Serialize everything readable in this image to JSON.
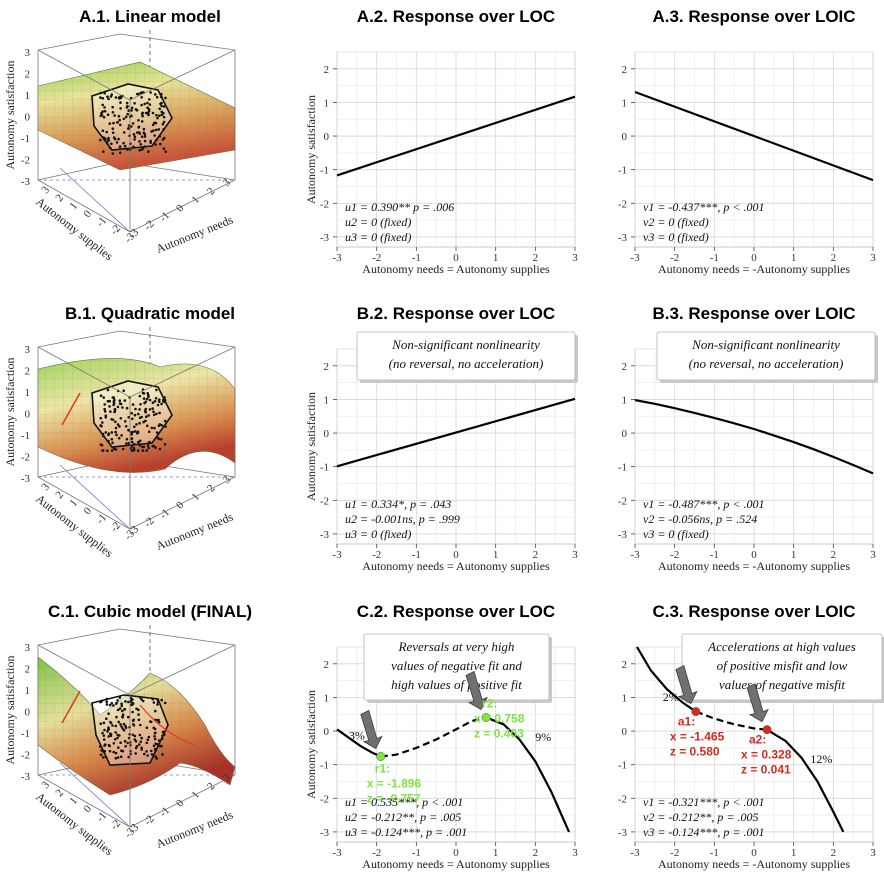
{
  "figure": {
    "rows": [
      {
        "surface": {
          "title": "A.1. Linear model",
          "zlabel": "Autonomy satisfaction",
          "xlabel": "Autonomy supplies",
          "ylabel": "Autonomy needs",
          "zticks": [
            "3",
            "2",
            "1",
            "0",
            "-1",
            "-2",
            "-3"
          ],
          "xticks": [
            "3",
            "2",
            "1",
            "0",
            "-1",
            "-2",
            "-3"
          ],
          "yticks": [
            "-3",
            "-2",
            "-1",
            "0",
            "1",
            "2",
            "3"
          ],
          "shape": "plane"
        }
      },
      {
        "surface": {
          "title": "B.1. Quadratic model",
          "zlabel": "Autonomy satisfaction",
          "xlabel": "Autonomy supplies",
          "ylabel": "Autonomy needs",
          "zticks": [
            "3",
            "2",
            "1",
            "0",
            "-1",
            "-2",
            "-3"
          ],
          "xticks": [
            "3",
            "2",
            "1",
            "0",
            "-1",
            "-2",
            "-3"
          ],
          "yticks": [
            "-3",
            "-2",
            "-1",
            "0",
            "1",
            "2",
            "3"
          ],
          "shape": "saddle"
        }
      },
      {
        "surface": {
          "title": "C.1. Cubic model (FINAL)",
          "zlabel": "Autonomy satisfaction",
          "xlabel": "Autonomy supplies",
          "ylabel": "Autonomy needs",
          "zticks": [
            "3",
            "2",
            "1",
            "0",
            "-1",
            "-2",
            "-3"
          ],
          "xticks": [
            "3",
            "2",
            "1",
            "0",
            "-1",
            "-2",
            "-3"
          ],
          "yticks": [
            "-3",
            "-2",
            "-1",
            "0",
            "1",
            "2",
            "3"
          ],
          "shape": "wave"
        }
      }
    ]
  },
  "chart_data": [
    {
      "type": "line",
      "title": "A.2. Response over LOC",
      "xlabel": "Autonomy needs = Autonomy supplies",
      "ylabel": "Autonomy satisfaction",
      "xlim": [
        -3,
        3
      ],
      "ylim": [
        -3.3,
        2.5
      ],
      "xticks": [
        -3,
        -2,
        -1,
        0,
        1,
        2,
        3
      ],
      "yticks": [
        -3,
        -2,
        -1,
        0,
        1,
        2
      ],
      "grid": true,
      "series": [
        {
          "x": [
            -3,
            3
          ],
          "y": [
            -1.17,
            1.17
          ],
          "color": "#000000"
        }
      ],
      "annotations": [
        "u1 = 0.390** p = .006",
        "u2 = 0 (fixed)",
        "u3 = 0 (fixed)"
      ]
    },
    {
      "type": "line",
      "title": "A.3. Response over LOIC",
      "xlabel": "Autonomy needs = -Autonomy supplies",
      "ylabel": "",
      "xlim": [
        -3,
        3
      ],
      "ylim": [
        -3.3,
        2.5
      ],
      "xticks": [
        -3,
        -2,
        -1,
        0,
        1,
        2,
        3
      ],
      "yticks": [
        -3,
        -2,
        -1,
        0,
        1,
        2
      ],
      "grid": true,
      "series": [
        {
          "x": [
            -3,
            3
          ],
          "y": [
            1.31,
            -1.31
          ],
          "color": "#000000"
        }
      ],
      "annotations": [
        "v1 = -0.437***, p < .001",
        "v2 = 0 (fixed)",
        "v3 = 0 (fixed)"
      ]
    },
    {
      "type": "line",
      "title": "B.2. Response over LOC",
      "xlabel": "Autonomy needs = Autonomy supplies",
      "ylabel": "Autonomy satisfaction",
      "xlim": [
        -3,
        3
      ],
      "ylim": [
        -3.3,
        2.5
      ],
      "xticks": [
        -3,
        -2,
        -1,
        0,
        1,
        2,
        3
      ],
      "yticks": [
        -3,
        -2,
        -1,
        0,
        1,
        2
      ],
      "grid": true,
      "series": [
        {
          "x": [
            -3,
            3
          ],
          "y": [
            -0.99,
            1.02
          ],
          "color": "#000000"
        }
      ],
      "callout": [
        "Non-significant nonlinearity",
        "(no reversal, no acceleration)"
      ],
      "annotations": [
        "u1 = 0.334*, p = .043",
        "u2 = -0.001ns, p = .999",
        "u3 = 0 (fixed)"
      ]
    },
    {
      "type": "line",
      "title": "B.3. Response over LOIC",
      "xlabel": "Autonomy needs = -Autonomy supplies",
      "ylabel": "",
      "xlim": [
        -3,
        3
      ],
      "ylim": [
        -3.3,
        2.5
      ],
      "xticks": [
        -3,
        -2,
        -1,
        0,
        1,
        2,
        3
      ],
      "yticks": [
        -3,
        -2,
        -1,
        0,
        1,
        2
      ],
      "grid": true,
      "series": [
        {
          "x": [
            -3,
            -2.5,
            -2,
            -1.5,
            -1,
            -0.5,
            0,
            0.5,
            1,
            1.5,
            2,
            2.5,
            3
          ],
          "y": [
            0.98,
            0.87,
            0.74,
            0.6,
            0.45,
            0.29,
            0.12,
            -0.07,
            -0.27,
            -0.48,
            -0.71,
            -0.95,
            -1.2
          ],
          "color": "#000000"
        }
      ],
      "callout": [
        "Non-significant nonlinearity",
        "(no reversal, no acceleration)"
      ],
      "annotations": [
        "v1 = -0.487***, p < .001",
        "v2 = -0.056ns, p = .524",
        "v3 = 0 (fixed)"
      ]
    },
    {
      "type": "line",
      "title": "C.2. Response over LOC",
      "xlabel": "Autonomy needs = Autonomy supplies",
      "ylabel": "Autonomy satisfaction",
      "xlim": [
        -3,
        3
      ],
      "ylim": [
        -3.3,
        2.5
      ],
      "xticks": [
        -3,
        -2,
        -1,
        0,
        1,
        2,
        3
      ],
      "yticks": [
        -3,
        -2,
        -1,
        0,
        1,
        2
      ],
      "grid": true,
      "series": [
        {
          "style": "solid",
          "x": [
            -3,
            -2.7,
            -2.4,
            -2.1,
            -1.896
          ],
          "y": [
            0.05,
            -0.2,
            -0.45,
            -0.65,
            -0.757
          ],
          "color": "#000000"
        },
        {
          "style": "dashed",
          "x": [
            -1.896,
            -1.5,
            -1,
            -0.5,
            0,
            0.4,
            0.758
          ],
          "y": [
            -0.757,
            -0.7,
            -0.5,
            -0.25,
            0.05,
            0.3,
            0.403
          ],
          "color": "#000000"
        },
        {
          "style": "solid",
          "x": [
            0.758,
            1.2,
            1.6,
            2.0,
            2.4,
            2.7,
            2.85
          ],
          "y": [
            0.403,
            0.2,
            -0.25,
            -0.9,
            -1.8,
            -2.6,
            -3.0
          ],
          "color": "#000000"
        }
      ],
      "points": [
        {
          "name": "r1",
          "x": -1.896,
          "z": -0.757,
          "color": "#7ce63c",
          "label": [
            "r1:",
            "x = -1.896",
            "z = -0.757"
          ]
        },
        {
          "name": "r2",
          "x": 0.758,
          "z": 0.403,
          "color": "#7ce63c",
          "label": [
            "r2:",
            "x = 0.758",
            "z = 0.403"
          ]
        }
      ],
      "percentages": [
        {
          "x": -2.5,
          "y": -0.25,
          "text": "3%"
        },
        {
          "x": 2.2,
          "y": -0.3,
          "text": "9%"
        }
      ],
      "callout": [
        "Reversals at very high",
        "values of negative fit and",
        "high values of positive fit"
      ],
      "annotations": [
        "u1 = 0.535***, p < .001",
        "u2 = -0.212**, p = .005",
        "u3 = -0.124***, p = .001"
      ]
    },
    {
      "type": "line",
      "title": "C.3. Response over LOIC",
      "xlabel": "Autonomy needs = -Autonomy supplies",
      "ylabel": "",
      "xlim": [
        -3,
        3
      ],
      "ylim": [
        -3.3,
        2.5
      ],
      "xticks": [
        -3,
        -2,
        -1,
        0,
        1,
        2,
        3
      ],
      "yticks": [
        -3,
        -2,
        -1,
        0,
        1,
        2
      ],
      "grid": true,
      "series": [
        {
          "style": "solid",
          "x": [
            -2.95,
            -2.6,
            -2.2,
            -1.8,
            -1.465
          ],
          "y": [
            2.5,
            1.8,
            1.25,
            0.85,
            0.58
          ],
          "color": "#000000"
        },
        {
          "style": "dashed",
          "x": [
            -1.465,
            -1,
            -0.5,
            0,
            0.328
          ],
          "y": [
            0.58,
            0.37,
            0.2,
            0.08,
            0.041
          ],
          "color": "#000000"
        },
        {
          "style": "solid",
          "x": [
            0.328,
            0.8,
            1.2,
            1.6,
            2.0,
            2.25
          ],
          "y": [
            0.041,
            -0.3,
            -0.8,
            -1.5,
            -2.4,
            -3.0
          ],
          "color": "#000000"
        }
      ],
      "points": [
        {
          "name": "a1",
          "x": -1.465,
          "z": 0.58,
          "color": "#d52b1e",
          "label": [
            "a1:",
            "x = -1.465",
            "z = 0.580"
          ]
        },
        {
          "name": "a2",
          "x": 0.328,
          "z": 0.041,
          "color": "#d52b1e",
          "label": [
            "a2:",
            "x = 0.328",
            "z = 0.041"
          ]
        }
      ],
      "percentages": [
        {
          "x": -2.1,
          "y": 0.9,
          "text": "2%"
        },
        {
          "x": 1.7,
          "y": -0.95,
          "text": "12%"
        }
      ],
      "callout": [
        "Accelerations at high values",
        "of positive misfit and low",
        "values of negative misfit"
      ],
      "annotations": [
        "v1 = -0.321***, p < .001",
        "v2 = -0.212**, p = .005",
        "v3 = -0.124***, p = .001"
      ]
    }
  ]
}
